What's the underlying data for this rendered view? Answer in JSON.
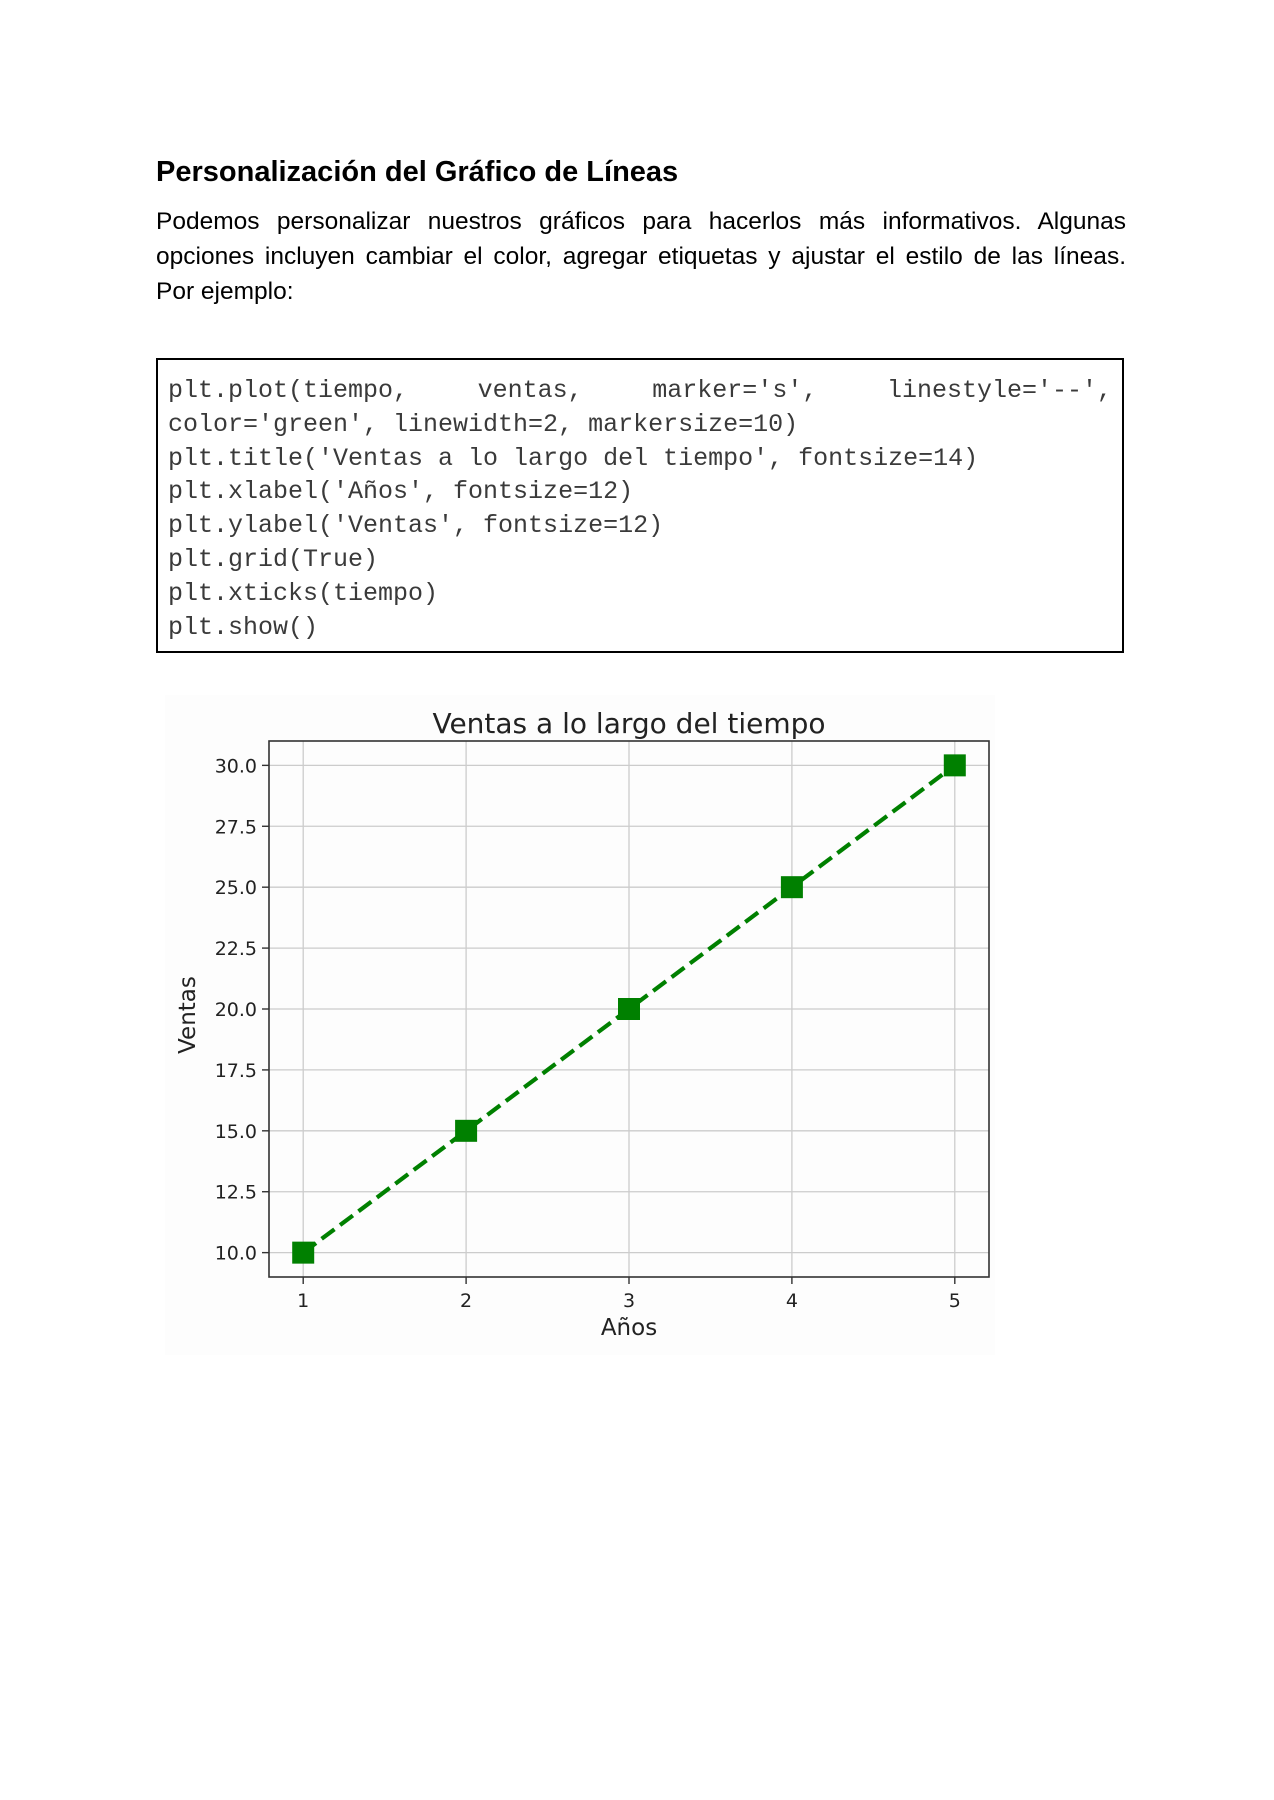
{
  "heading": "Personalización del Gráfico de Líneas",
  "paragraph": {
    "lines": [
      "Podemos personalizar nuestros gráficos para hacerlos más informativos. Algunas",
      "opciones incluyen cambiar el color, agregar etiquetas y ajustar el estilo de las líneas.",
      "Por ejemplo:"
    ]
  },
  "code": {
    "line1_parts": [
      "plt.plot(tiempo,",
      "ventas,",
      "marker='s',",
      "linestyle='--',"
    ],
    "lines": [
      "color='green', linewidth=2, markersize=10)",
      "plt.title('Ventas a lo largo del tiempo', fontsize=14)",
      "plt.xlabel('Años', fontsize=12)",
      "plt.ylabel('Ventas', fontsize=12)",
      "plt.grid(True)",
      "plt.xticks(tiempo)",
      "plt.show()"
    ]
  },
  "chart_data": {
    "type": "line",
    "title": "Ventas a lo largo del tiempo",
    "xlabel": "Años",
    "ylabel": "Ventas",
    "x": [
      1,
      2,
      3,
      4,
      5
    ],
    "series": [
      {
        "values": [
          10,
          15,
          20,
          25,
          30
        ],
        "color": "#008000",
        "linestyle": "dashed",
        "marker": "square"
      }
    ],
    "xticks": [
      "1",
      "2",
      "3",
      "4",
      "5"
    ],
    "yticks": [
      "10.0",
      "12.5",
      "15.0",
      "17.5",
      "20.0",
      "22.5",
      "25.0",
      "27.5",
      "30.0"
    ],
    "xlim": [
      0.79,
      5.21
    ],
    "ylim": [
      9,
      31
    ],
    "grid": true
  }
}
